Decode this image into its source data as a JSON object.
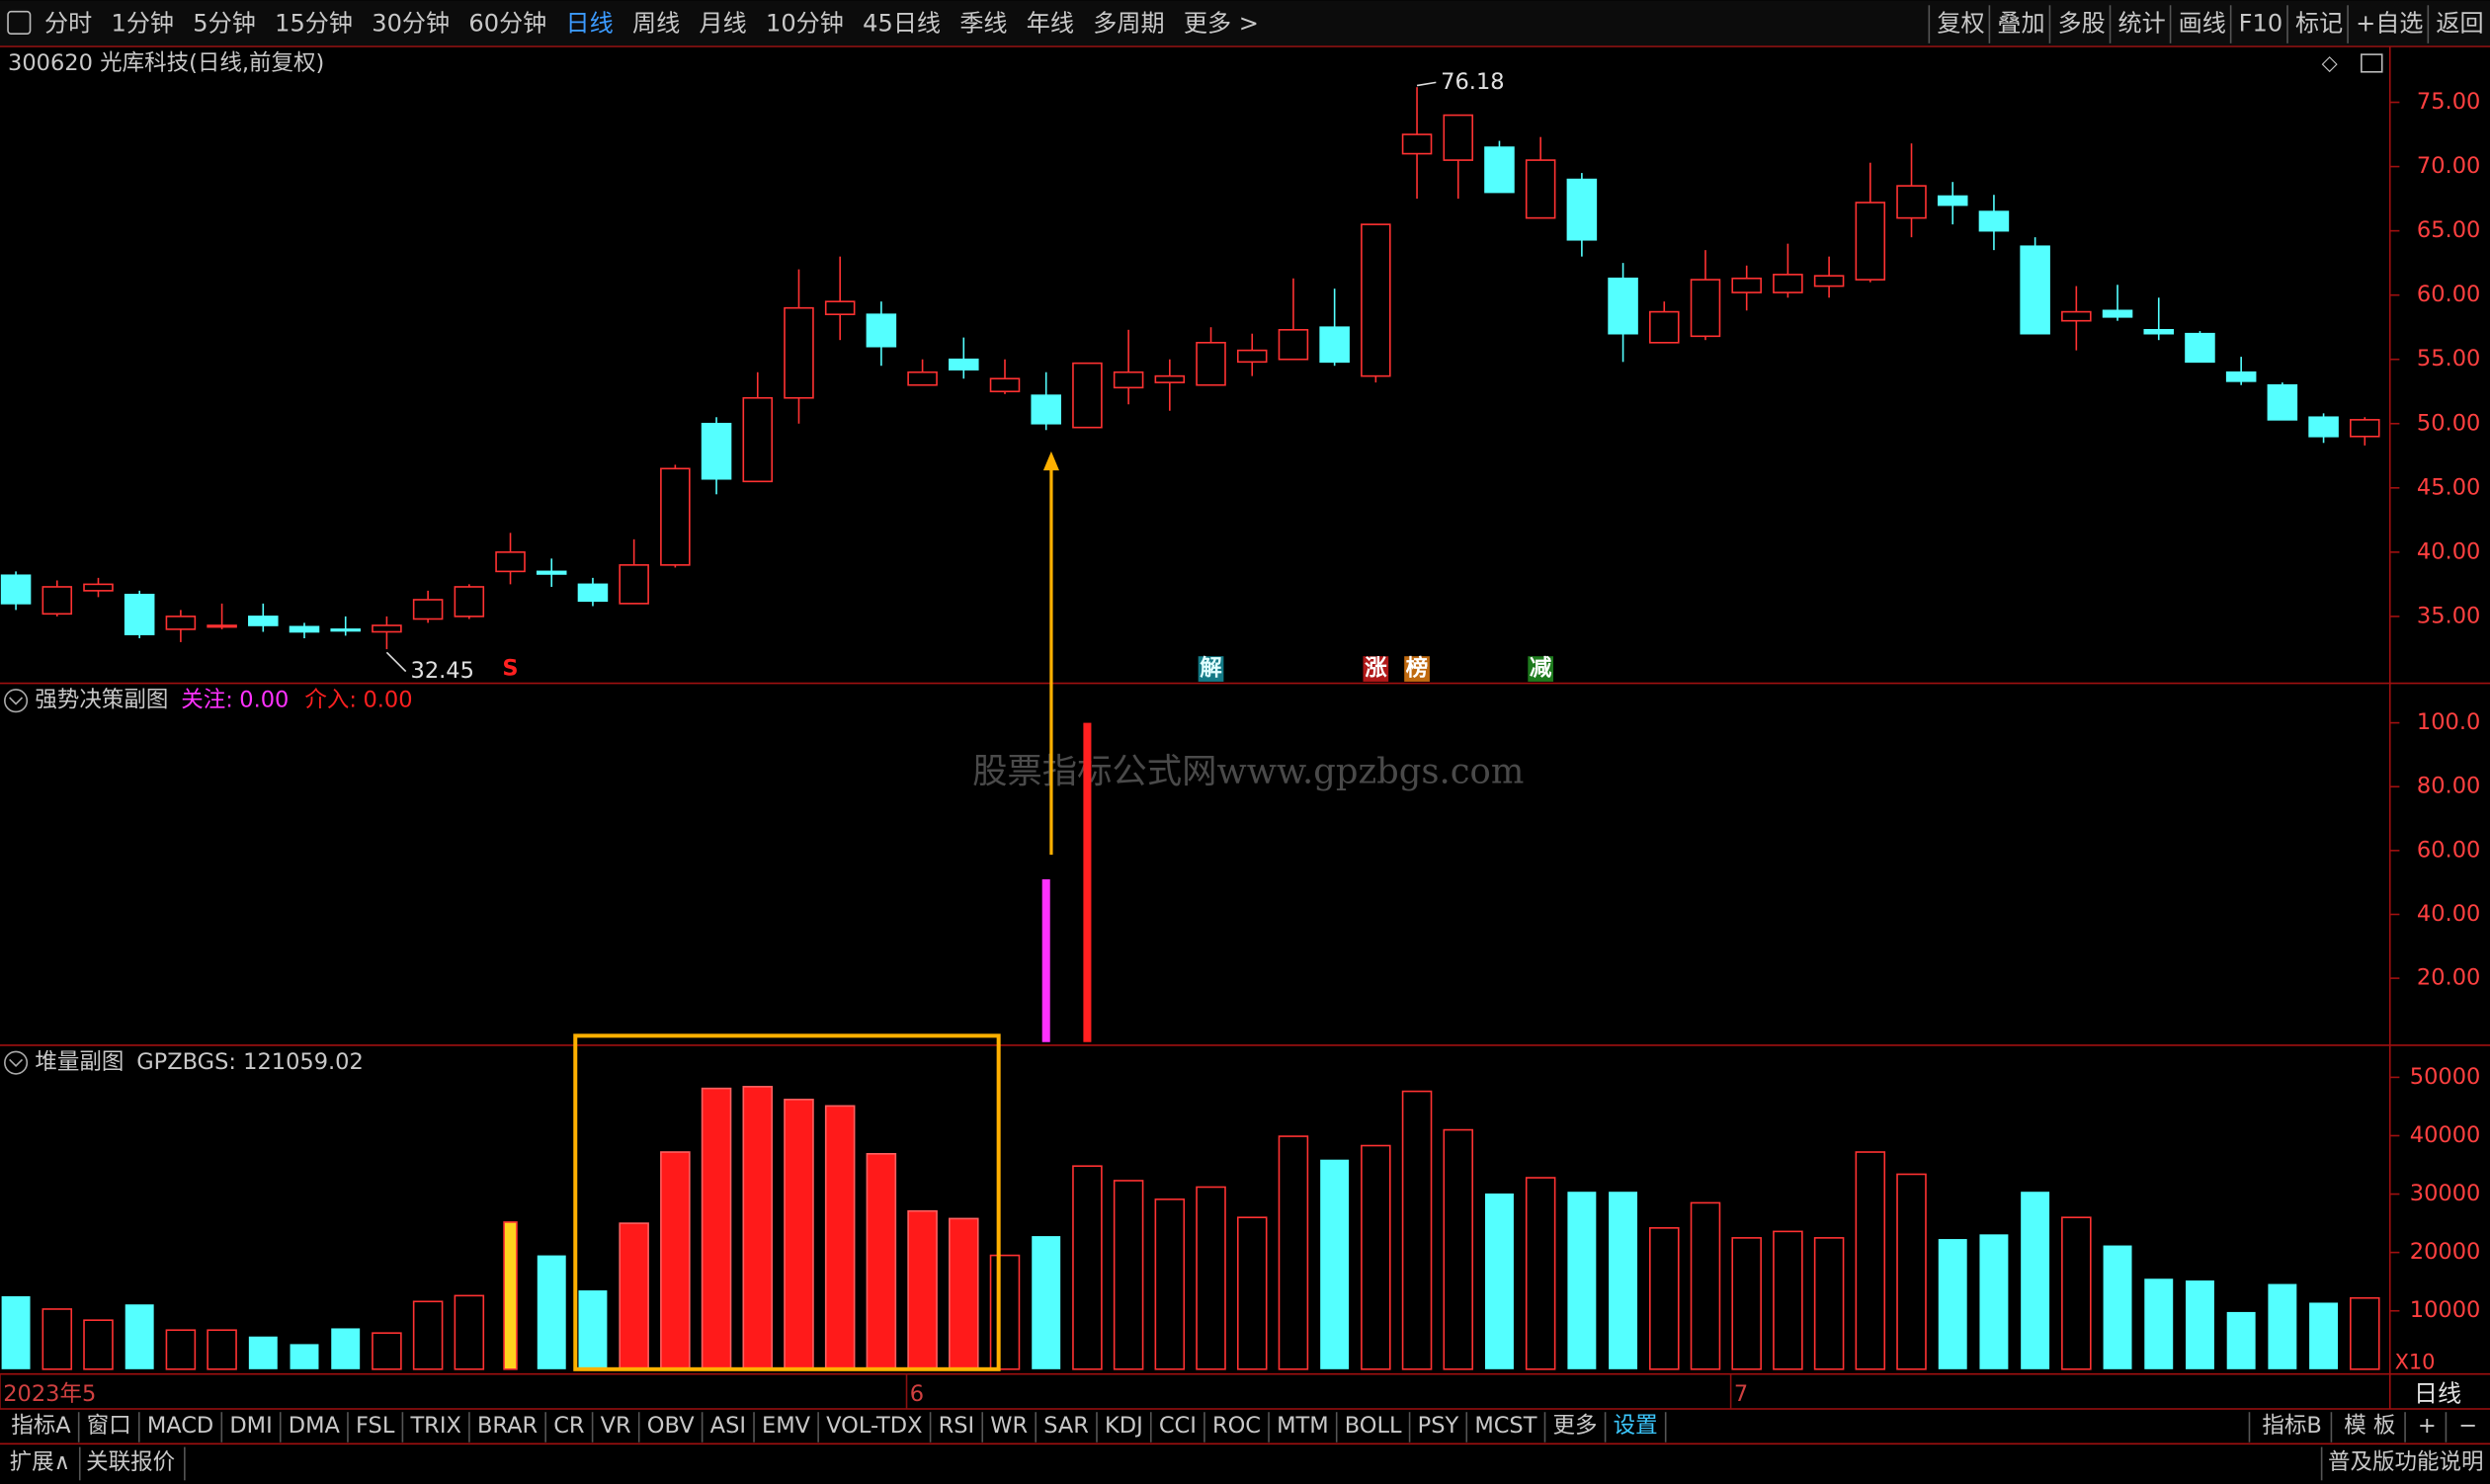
{
  "toolbar": {
    "left": [
      "分时",
      "1分钟",
      "5分钟",
      "15分钟",
      "30分钟",
      "60分钟",
      "日线",
      "周线",
      "月线",
      "10分钟",
      "45日线",
      "季线",
      "年线",
      "多周期",
      "更多 >"
    ],
    "active_index": 6,
    "right": [
      "复权",
      "叠加",
      "多股",
      "统计",
      "画线",
      "F10",
      "标记",
      "+自选",
      "返回"
    ]
  },
  "title": "300620 光库科技(日线,前复权)",
  "watermark": "股票指标公式网www.gpzbgs.com",
  "chart_data": [
    {
      "type": "candlestick",
      "categories": [
        "2023年5",
        null,
        null,
        null,
        null,
        null,
        null,
        null,
        null,
        null,
        null,
        null,
        null,
        null,
        null,
        null,
        null,
        null,
        null,
        null,
        null,
        null,
        "6",
        null,
        null,
        null,
        null,
        null,
        null,
        null,
        null,
        null,
        null,
        null,
        null,
        null,
        null,
        null,
        null,
        null,
        null,
        null,
        "7",
        null,
        null,
        null,
        null,
        null,
        null,
        null,
        null,
        null,
        null,
        null,
        null,
        null,
        null,
        null
      ],
      "open": [
        38.2,
        35.2,
        37,
        36.7,
        34,
        34.2,
        35,
        34.2,
        34,
        33.8,
        34.8,
        35,
        38.5,
        38.5,
        37.5,
        36,
        39,
        50,
        45.5,
        52,
        58.5,
        58.5,
        53,
        55,
        52.5,
        52.2,
        49.7,
        52.8,
        53.2,
        53,
        54.8,
        55,
        57.5,
        53.7,
        71,
        70.5,
        71.5,
        66,
        69,
        61.3,
        56.3,
        56.8,
        60.2,
        60.2,
        60.7,
        61.2,
        66,
        67.7,
        66.5,
        63.8,
        58,
        58.8,
        57.3,
        57,
        54,
        53,
        50.5,
        49
      ],
      "high": [
        38.5,
        37.8,
        38,
        37,
        35.5,
        36,
        36,
        34.5,
        35,
        35,
        37,
        37.5,
        41.5,
        39.5,
        38,
        41,
        46.8,
        50.5,
        54,
        62,
        63,
        59.5,
        55,
        56.7,
        55,
        54,
        54.7,
        57.3,
        55,
        57.5,
        57,
        61.3,
        60.5,
        65.5,
        76.18,
        74,
        72,
        72.3,
        69.5,
        62.5,
        59.5,
        63.5,
        62.3,
        64,
        63,
        70.3,
        71.8,
        68.8,
        67.8,
        64.5,
        60.7,
        60.8,
        59.8,
        57.2,
        55.2,
        53.2,
        50.8,
        50.5
      ],
      "low": [
        35.5,
        35,
        36.5,
        33.3,
        33,
        34,
        33.8,
        33.3,
        33.5,
        32.45,
        34.5,
        34.8,
        37.5,
        37.3,
        35.8,
        36,
        38.8,
        44.5,
        45.5,
        50,
        56.5,
        54.5,
        53,
        53.5,
        52.3,
        49.5,
        49.7,
        51.5,
        51,
        53,
        53.7,
        55,
        54.5,
        53.2,
        67.5,
        67.5,
        68,
        66,
        63,
        54.8,
        56.3,
        56.5,
        58.8,
        59.8,
        59.8,
        61,
        64.5,
        65.5,
        63.5,
        57,
        55.7,
        58,
        56.5,
        54.8,
        53,
        50.3,
        48.5,
        48.3
      ],
      "close": [
        36,
        37.3,
        37.5,
        33.6,
        35,
        34.3,
        34.3,
        33.8,
        33.9,
        34.3,
        36.3,
        37.3,
        40,
        38.3,
        36.2,
        39,
        46.5,
        45.7,
        52,
        59,
        59.5,
        56,
        54,
        54.2,
        53.5,
        50,
        54.7,
        54,
        53.7,
        56.3,
        55.7,
        57.3,
        54.8,
        65.5,
        72.5,
        74,
        68,
        70.5,
        64.3,
        57,
        58.7,
        61.2,
        61.3,
        61.6,
        61.5,
        67.2,
        68.5,
        67,
        65,
        57,
        58.7,
        58.3,
        57,
        54.8,
        53.3,
        50.3,
        49,
        50.3
      ],
      "up_color": "#ff3232",
      "down_color": "#54ffff",
      "ylim": [
        29.8,
        78.6
      ],
      "yticks": [
        {
          "value": 35,
          "label": "35.00"
        },
        {
          "value": 40,
          "label": "40.00"
        },
        {
          "value": 45,
          "label": "45.00"
        },
        {
          "value": 50,
          "label": "50.00"
        },
        {
          "value": 55,
          "label": "55.00"
        },
        {
          "value": 60,
          "label": "60.00"
        },
        {
          "value": 65,
          "label": "65.00"
        },
        {
          "value": 70,
          "label": "70.00"
        },
        {
          "value": 75,
          "label": "75.00"
        }
      ],
      "annotations": [
        {
          "value": 76.18,
          "label": "76.18"
        },
        {
          "value": 32.45,
          "label": "32.45"
        }
      ],
      "signals": [
        {
          "label": "S",
          "at": 12,
          "color": "#ff2020",
          "bg": "#000000"
        },
        {
          "label": "解",
          "at": 29,
          "color": "#e0ffff",
          "bg": "#137a86"
        },
        {
          "label": "涨",
          "at": 33,
          "color": "#ffffff",
          "bg": "#b01818"
        },
        {
          "label": "榜",
          "at": 34,
          "color": "#ffffff",
          "bg": "#c06a10"
        },
        {
          "label": "减",
          "at": 37,
          "color": "#ffffff",
          "bg": "#1d7a1d"
        }
      ],
      "x_axis_right": "日线"
    },
    {
      "type": "bar",
      "title": "强势决策副图",
      "series": [
        {
          "name": "关注:",
          "last_label": "0.00",
          "color": "#ff32ff",
          "values": [
            null,
            null,
            null,
            null,
            null,
            null,
            null,
            null,
            null,
            null,
            null,
            null,
            null,
            null,
            null,
            null,
            null,
            null,
            null,
            null,
            null,
            null,
            null,
            null,
            null,
            51,
            null,
            null,
            null,
            null,
            null,
            null,
            null,
            null,
            null,
            null,
            null,
            null,
            null,
            null,
            null,
            null,
            null,
            null,
            null,
            null,
            null,
            null,
            null,
            null,
            null,
            null,
            null,
            null,
            null,
            null,
            null,
            null
          ]
        },
        {
          "name": "介入:",
          "last_label": "0.00",
          "color": "#ff2020",
          "values": [
            null,
            null,
            null,
            null,
            null,
            null,
            null,
            null,
            null,
            null,
            null,
            null,
            null,
            null,
            null,
            null,
            null,
            null,
            null,
            null,
            null,
            null,
            null,
            null,
            null,
            null,
            100,
            null,
            null,
            null,
            null,
            null,
            null,
            null,
            null,
            null,
            null,
            null,
            null,
            null,
            null,
            null,
            null,
            null,
            null,
            null,
            null,
            null,
            null,
            null,
            null,
            null,
            null,
            null,
            null,
            null,
            null,
            null
          ]
        }
      ],
      "ylim": [
        0,
        111.4
      ],
      "yticks": [
        {
          "value": 20,
          "label": "20.00"
        },
        {
          "value": 40,
          "label": "40.00"
        },
        {
          "value": 60,
          "label": "60.00"
        },
        {
          "value": 80,
          "label": "80.00"
        },
        {
          "value": 100,
          "label": "100.0"
        }
      ]
    },
    {
      "type": "bar",
      "title": "堆量副图",
      "subtitle": "GPZBGS: 121059.02",
      "values": [
        12500,
        10300,
        8400,
        11100,
        6700,
        6700,
        5600,
        4300,
        7000,
        6200,
        11600,
        12600,
        25200,
        19500,
        13500,
        25000,
        37200,
        48100,
        48400,
        46200,
        45100,
        36900,
        27100,
        25800,
        19500,
        22800,
        34800,
        32300,
        29100,
        31200,
        26000,
        39900,
        35900,
        38300,
        47600,
        41000,
        30100,
        32800,
        30400,
        30400,
        24200,
        28500,
        22500,
        23600,
        22500,
        37200,
        33400,
        22300,
        23100,
        30400,
        26000,
        21200,
        15500,
        15200,
        9800,
        14600,
        11400,
        12200
      ],
      "styles": [
        "d",
        "u",
        "u",
        "d",
        "u",
        "u",
        "d",
        "d",
        "d",
        "u",
        "u",
        "u",
        "y",
        "d",
        "d",
        "s",
        "s",
        "s",
        "s",
        "s",
        "s",
        "s",
        "s",
        "s",
        "u",
        "d",
        "u",
        "u",
        "u",
        "u",
        "u",
        "u",
        "d",
        "u",
        "u",
        "u",
        "d",
        "u",
        "d",
        "d",
        "u",
        "u",
        "u",
        "u",
        "u",
        "u",
        "u",
        "d",
        "d",
        "d",
        "u",
        "d",
        "d",
        "d",
        "d",
        "d",
        "d",
        "u"
      ],
      "up_color": "#ff3232",
      "down_color": "#54ffff",
      "solid_color": "#ff1a1a",
      "mark_color": "#ffd21e",
      "highlight": [
        14,
        23
      ],
      "highlight_color": "#ffb000",
      "ylim": [
        0,
        54400
      ],
      "yticks": [
        10000,
        20000,
        30000,
        40000,
        50000
      ],
      "scale_label": "X10"
    }
  ],
  "tabs": {
    "left": [
      "指标A",
      "窗口",
      "MACD",
      "DMI",
      "DMA",
      "FSL",
      "TRIX",
      "BRAR",
      "CR",
      "VR",
      "OBV",
      "ASI",
      "EMV",
      "VOL-TDX",
      "RSI",
      "WR",
      "SAR",
      "KDJ",
      "CCI",
      "ROC",
      "MTM",
      "BOLL",
      "PSY",
      "MCST",
      "更多",
      "设置"
    ],
    "highlight_index": 25,
    "right": [
      "指标B",
      "模 板",
      "+",
      "−"
    ]
  },
  "footer": {
    "left": [
      "扩展∧",
      "关联报价"
    ],
    "right": "普及版功能说明"
  }
}
